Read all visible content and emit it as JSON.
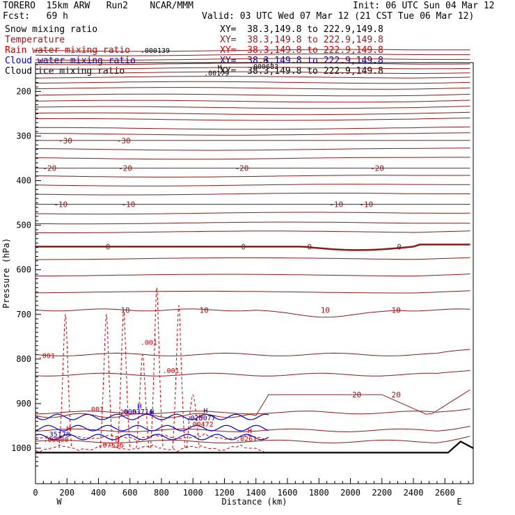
{
  "header": {
    "model": "TORERO  15km ARW   Run2    NCAR/MMM",
    "init": "Init: 06 UTC Sun 04 Mar 12",
    "fcst": "Fcst:   69 h",
    "valid": "Valid: 03 UTC Wed 07 Mar 12 (21 CST Tue 06 Mar 12)"
  },
  "legend": [
    {
      "label": "Snow mixing ratio",
      "color": "#000000",
      "xy": "XY=  38.3,149.8 to 222.9,149.8"
    },
    {
      "label": "Temperature",
      "color": "#8b1a1a",
      "xy": "XY=  38.3,149.8 to 222.9,149.8"
    },
    {
      "label": "Rain water mixing ratio",
      "color": "#dd0000",
      "xy": "XY=  38.3,149.8 to 222.9,149.8"
    },
    {
      "label": "Cloud water mixing ratio",
      "color": "#0000cc",
      "xy": "XY=  38.3,149.8 to 222.9,149.8"
    },
    {
      "label": "Cloud ice mixing ratio",
      "color": "#000000",
      "xy": "XY=  38.3,149.8 to 222.9,149.8"
    }
  ],
  "colors": {
    "temperature": "#8b1a1a",
    "rain": "#dd0000",
    "cloud_water": "#0000cc",
    "terrain": "#000000"
  },
  "chart_data": {
    "type": "contour-cross-section",
    "xlabel": "Distance (km)",
    "ylabel": "Pressure (hPa)",
    "xlim": [
      0,
      2780
    ],
    "ylim": [
      1050,
      100
    ],
    "x_ticks": [
      0,
      200,
      400,
      600,
      800,
      1000,
      1200,
      1400,
      1600,
      1800,
      2000,
      2200,
      2400,
      2600
    ],
    "y_ticks": [
      200,
      300,
      400,
      500,
      600,
      700,
      800,
      900,
      1000
    ],
    "x_end_labels": {
      "left": "W",
      "right": "E"
    },
    "temperature_levels": [
      {
        "value": -30,
        "pressure": 310,
        "labels": [
          {
            "x": 190,
            "text": "-30"
          },
          {
            "x": 560,
            "text": "-30"
          }
        ]
      },
      {
        "value": -20,
        "pressure": 372,
        "labels": [
          {
            "x": 90,
            "text": "-20"
          },
          {
            "x": 570,
            "text": "-20"
          },
          {
            "x": 1310,
            "text": "-20"
          },
          {
            "x": 2170,
            "text": "-20"
          }
        ]
      },
      {
        "value": -10,
        "pressure": 453,
        "labels": [
          {
            "x": 160,
            "text": "-10"
          },
          {
            "x": 590,
            "text": "-10"
          },
          {
            "x": 1910,
            "text": "-10"
          },
          {
            "x": 2100,
            "text": "-10"
          }
        ]
      },
      {
        "value": 0,
        "pressure": 548,
        "labels": [
          {
            "x": 460,
            "text": "0"
          },
          {
            "x": 1320,
            "text": "0"
          },
          {
            "x": 1740,
            "text": "0"
          },
          {
            "x": 2310,
            "text": "0"
          }
        ]
      },
      {
        "value": 10,
        "pressure": 690,
        "labels": [
          {
            "x": 570,
            "text": "10"
          },
          {
            "x": 1070,
            "text": "10"
          },
          {
            "x": 1840,
            "text": "10"
          },
          {
            "x": 2290,
            "text": "10"
          }
        ]
      },
      {
        "value": 20,
        "pressure": 880,
        "labels": [
          {
            "x": 2040,
            "text": "20"
          },
          {
            "x": 2290,
            "text": "20"
          }
        ]
      }
    ],
    "annotations": [
      {
        "text": "H",
        "x": 1460,
        "pressure": 130,
        "color": "#000000"
      },
      {
        "text": ".000683",
        "x": 1450,
        "pressure": 143,
        "color": "#000000"
      },
      {
        "text": "H",
        "x": 1170,
        "pressure": 145,
        "color": "#000000"
      },
      {
        "text": ".00179",
        "x": 1150,
        "pressure": 158,
        "color": "#000000"
      },
      {
        "text": ".000139",
        "x": 760,
        "pressure": 107,
        "color": "#000000"
      },
      {
        "text": ".001",
        "x": 70,
        "pressure": 792,
        "color": "#dd0000"
      },
      {
        "text": ".001",
        "x": 720,
        "pressure": 762,
        "color": "#dd0000"
      },
      {
        "text": ".001",
        "x": 860,
        "pressure": 825,
        "color": "#dd0000"
      },
      {
        "text": ".001",
        "x": 380,
        "pressure": 912,
        "color": "#dd0000"
      },
      {
        "text": "H",
        "x": 660,
        "pressure": 905,
        "color": "#0000cc"
      },
      {
        "text": ".0003714",
        "x": 640,
        "pressure": 917,
        "color": "#0000cc"
      },
      {
        "text": "20.0",
        "x": 590,
        "pressure": 918,
        "color": "#dd0000"
      },
      {
        "text": "H",
        "x": 740,
        "pressure": 918,
        "color": "#0000cc"
      },
      {
        "text": "H",
        "x": 1080,
        "pressure": 915,
        "color": "#0000cc"
      },
      {
        "text": "H",
        "x": 1050,
        "pressure": 930,
        "color": "#dd0000"
      },
      {
        "text": ".025077",
        "x": 1050,
        "pressure": 931,
        "color": "#0000cc"
      },
      {
        "text": ".00472",
        "x": 1050,
        "pressure": 945,
        "color": "#dd0000"
      },
      {
        "text": "H",
        "x": 210,
        "pressure": 955,
        "color": "#dd0000"
      },
      {
        "text": ".35178",
        "x": 140,
        "pressure": 968,
        "color": "#0000cc"
      },
      {
        "text": ".00000",
        "x": 130,
        "pressure": 980,
        "color": "#dd0000"
      },
      {
        "text": "H",
        "x": 520,
        "pressure": 980,
        "color": "#dd0000"
      },
      {
        "text": ".07536",
        "x": 480,
        "pressure": 992,
        "color": "#dd0000"
      },
      {
        "text": "H",
        "x": 1360,
        "pressure": 960,
        "color": "#dd0000"
      },
      {
        "text": ".0261",
        "x": 1340,
        "pressure": 978,
        "color": "#dd0000"
      }
    ]
  }
}
